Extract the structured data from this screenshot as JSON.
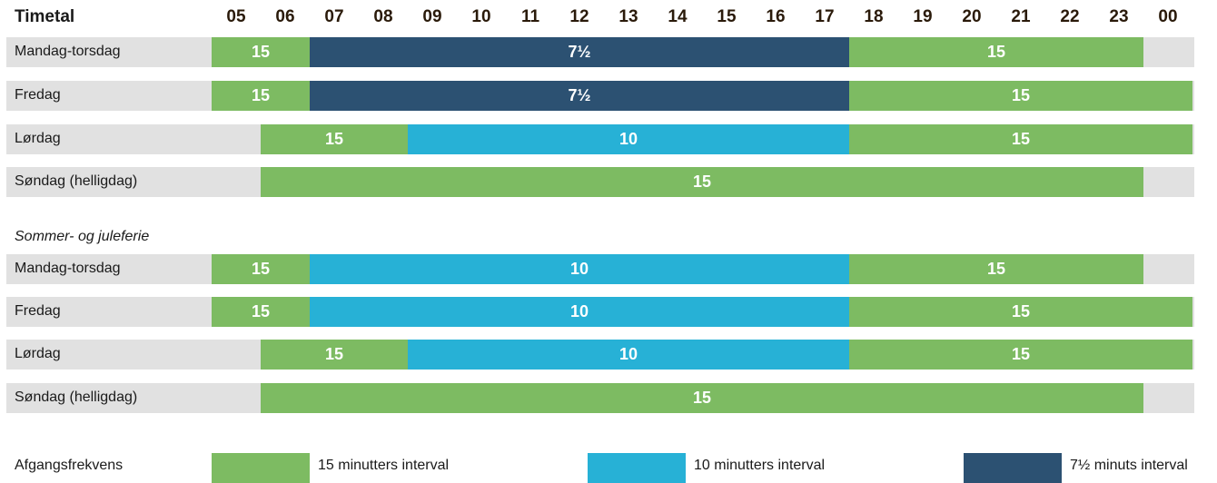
{
  "colors": {
    "interval_15": "#7dbb62",
    "interval_10": "#27b1d6",
    "interval_7_5": "#2c5172",
    "row_background": "#e1e1e1"
  },
  "chart_data": {
    "type": "table",
    "header_label": "Timetal",
    "hours": [
      "05",
      "06",
      "07",
      "08",
      "09",
      "10",
      "11",
      "12",
      "13",
      "14",
      "15",
      "16",
      "17",
      "18",
      "19",
      "20",
      "21",
      "22",
      "23",
      "00"
    ],
    "groups": [
      {
        "title": "",
        "rows": [
          {
            "label": "Mandag-torsdag",
            "segments": [
              {
                "start": 0,
                "end": 2,
                "value": "15",
                "kind": "interval_15"
              },
              {
                "start": 2,
                "end": 13,
                "value": "7½",
                "kind": "interval_7_5"
              },
              {
                "start": 13,
                "end": 19,
                "value": "15",
                "kind": "interval_15"
              }
            ]
          },
          {
            "label": "Fredag",
            "segments": [
              {
                "start": 0,
                "end": 2,
                "value": "15",
                "kind": "interval_15"
              },
              {
                "start": 2,
                "end": 13,
                "value": "7½",
                "kind": "interval_7_5"
              },
              {
                "start": 13,
                "end": 20,
                "value": "15",
                "kind": "interval_15"
              }
            ]
          },
          {
            "label": "Lørdag",
            "segments": [
              {
                "start": 1,
                "end": 4,
                "value": "15",
                "kind": "interval_15"
              },
              {
                "start": 4,
                "end": 13,
                "value": "10",
                "kind": "interval_10"
              },
              {
                "start": 13,
                "end": 20,
                "value": "15",
                "kind": "interval_15"
              }
            ]
          },
          {
            "label": "Søndag (helligdag)",
            "segments": [
              {
                "start": 1,
                "end": 19,
                "value": "15",
                "kind": "interval_15"
              }
            ]
          }
        ]
      },
      {
        "title": "Sommer- og juleferie",
        "rows": [
          {
            "label": "Mandag-torsdag",
            "segments": [
              {
                "start": 0,
                "end": 2,
                "value": "15",
                "kind": "interval_15"
              },
              {
                "start": 2,
                "end": 13,
                "value": "10",
                "kind": "interval_10"
              },
              {
                "start": 13,
                "end": 19,
                "value": "15",
                "kind": "interval_15"
              }
            ]
          },
          {
            "label": "Fredag",
            "segments": [
              {
                "start": 0,
                "end": 2,
                "value": "15",
                "kind": "interval_15"
              },
              {
                "start": 2,
                "end": 13,
                "value": "10",
                "kind": "interval_10"
              },
              {
                "start": 13,
                "end": 20,
                "value": "15",
                "kind": "interval_15"
              }
            ]
          },
          {
            "label": "Lørdag",
            "segments": [
              {
                "start": 1,
                "end": 4,
                "value": "15",
                "kind": "interval_15"
              },
              {
                "start": 4,
                "end": 13,
                "value": "10",
                "kind": "interval_10"
              },
              {
                "start": 13,
                "end": 20,
                "value": "15",
                "kind": "interval_15"
              }
            ]
          },
          {
            "label": "Søndag (helligdag)",
            "segments": [
              {
                "start": 1,
                "end": 19,
                "value": "15",
                "kind": "interval_15"
              }
            ]
          }
        ]
      }
    ],
    "legend": {
      "title": "Afgangsfrekvens",
      "items": [
        {
          "kind": "interval_15",
          "label": "15 minutters interval"
        },
        {
          "kind": "interval_10",
          "label": "10 minutters interval"
        },
        {
          "kind": "interval_7_5",
          "label": "7½ minuts interval"
        }
      ]
    }
  }
}
